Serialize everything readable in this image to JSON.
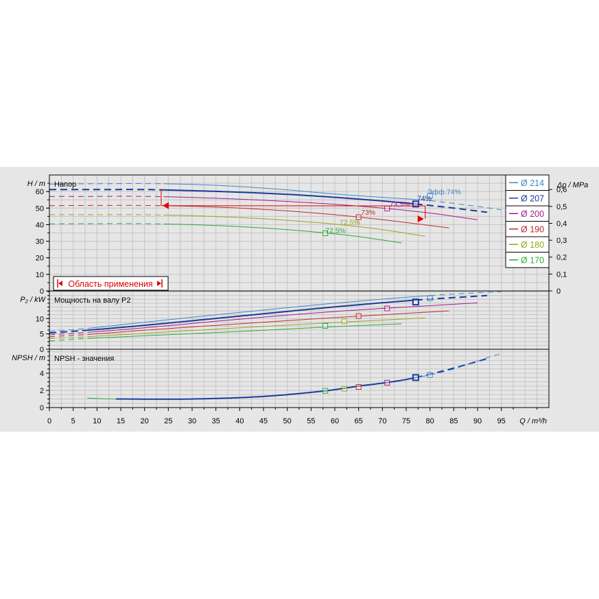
{
  "chart_data": {
    "type": "line",
    "x_axis": {
      "label": "Q / m³/h",
      "ticks": [
        0,
        5,
        10,
        15,
        20,
        25,
        30,
        35,
        40,
        45,
        50,
        55,
        60,
        65,
        70,
        75,
        80,
        85,
        90,
        95
      ],
      "range": [
        0,
        105
      ]
    },
    "legend": [
      {
        "label": "Ø 214",
        "color": "#3a87c6"
      },
      {
        "label": "Ø 207",
        "color": "#1a3a9a"
      },
      {
        "label": "Ø 200",
        "color": "#a3178e"
      },
      {
        "label": "Ø 190",
        "color": "#c0282c"
      },
      {
        "label": "Ø 180",
        "color": "#98a51d"
      },
      {
        "label": "Ø 170",
        "color": "#2aa83c"
      }
    ],
    "panels": {
      "head": {
        "title": "Напор",
        "ylabel": "H / m",
        "yticks": [
          0,
          10,
          20,
          30,
          40,
          50,
          60
        ],
        "yrange": [
          0,
          70
        ],
        "right_label": "Δp / MPa",
        "right_ticks": [
          "0",
          "0,1",
          "0,2",
          "0,3",
          "0,4",
          "0,5",
          "0,6"
        ],
        "range_label": "Область применения",
        "efficiency_title": "Эфф.",
        "efficiency_labels": [
          {
            "text": "74%",
            "x": 83.5,
            "y": 58.5,
            "color": "#3a87c6"
          },
          {
            "text": "74%",
            "x": 77.3,
            "y": 54.5,
            "color": "#1a3a9a"
          },
          {
            "text": "73,5%",
            "x": 71.5,
            "y": 51.0,
            "color": "#a3178e"
          },
          {
            "text": "73%",
            "x": 65.5,
            "y": 46.0,
            "color": "#c0282c"
          },
          {
            "text": "72,5%",
            "x": 61.0,
            "y": 40.0,
            "color": "#98a51d"
          },
          {
            "text": "72,5%",
            "x": 58.0,
            "y": 35.0,
            "color": "#2aa83c"
          }
        ],
        "series": [
          {
            "name": "Ø 214",
            "color": "#3a87c6",
            "width": 1,
            "dashed_end": 24,
            "solid_end": 80,
            "points": [
              [
                0,
                64.5
              ],
              [
                10,
                64.7
              ],
              [
                20,
                64.8
              ],
              [
                30,
                64.3
              ],
              [
                40,
                63
              ],
              [
                50,
                61
              ],
              [
                60,
                58.5
              ],
              [
                70,
                56.5
              ],
              [
                80,
                54.5
              ],
              [
                90,
                51
              ],
              [
                95,
                49
              ]
            ]
          },
          {
            "name": "Ø 207",
            "color": "#1a3a9a",
            "width": 2,
            "dashed_end": 24,
            "solid_end": 77,
            "points": [
              [
                0,
                61.2
              ],
              [
                10,
                61.2
              ],
              [
                20,
                61.2
              ],
              [
                30,
                60.5
              ],
              [
                40,
                59.6
              ],
              [
                50,
                58.3
              ],
              [
                60,
                56.5
              ],
              [
                70,
                54.3
              ],
              [
                77,
                52.5
              ],
              [
                85,
                50
              ],
              [
                92,
                47.5
              ]
            ]
          },
          {
            "name": "Ø 200",
            "color": "#a3178e",
            "width": 1,
            "dashed_end": 24,
            "solid_end": 90,
            "points": [
              [
                0,
                57
              ],
              [
                10,
                57.1
              ],
              [
                20,
                57.1
              ],
              [
                30,
                56.4
              ],
              [
                40,
                55.4
              ],
              [
                50,
                54
              ],
              [
                60,
                52.3
              ],
              [
                70,
                50
              ],
              [
                80,
                47
              ],
              [
                90,
                43
              ]
            ]
          },
          {
            "name": "Ø 190",
            "color": "#c0282c",
            "width": 1,
            "dashed_end": 24,
            "solid_end": 84,
            "points": [
              [
                0,
                51.5
              ],
              [
                10,
                51.6
              ],
              [
                20,
                51.6
              ],
              [
                30,
                51.1
              ],
              [
                40,
                50
              ],
              [
                50,
                48.3
              ],
              [
                60,
                46
              ],
              [
                70,
                43
              ],
              [
                80,
                39.5
              ],
              [
                84,
                38
              ]
            ]
          },
          {
            "name": "Ø 180",
            "color": "#98a51d",
            "width": 1,
            "dashed_end": 24,
            "solid_end": 79,
            "points": [
              [
                0,
                46
              ],
              [
                10,
                46
              ],
              [
                20,
                46
              ],
              [
                30,
                45.4
              ],
              [
                40,
                44.3
              ],
              [
                50,
                42.6
              ],
              [
                60,
                40.3
              ],
              [
                70,
                37
              ],
              [
                79,
                33
              ]
            ]
          },
          {
            "name": "Ø 170",
            "color": "#2aa83c",
            "width": 1,
            "dashed_end": 24,
            "solid_end": 74,
            "points": [
              [
                0,
                40.5
              ],
              [
                10,
                40.6
              ],
              [
                20,
                40.6
              ],
              [
                30,
                40
              ],
              [
                40,
                38.8
              ],
              [
                50,
                37
              ],
              [
                58,
                35
              ],
              [
                65,
                32.8
              ],
              [
                74,
                29
              ]
            ]
          }
        ],
        "duty_points": [
          {
            "x": 80,
            "y": 57.5,
            "color": "#3a87c6"
          },
          {
            "x": 77,
            "y": 52.5,
            "color": "#1a3a9a"
          },
          {
            "x": 71,
            "y": 49.8,
            "color": "#a3178e"
          },
          {
            "x": 65,
            "y": 44.5,
            "color": "#c0282c"
          },
          {
            "x": 58,
            "y": 34.8,
            "color": "#2aa83c"
          }
        ],
        "operating_bracket": {
          "x_left": 23.5,
          "x_right": 79,
          "y_top": 61.5,
          "y_bottom": 51.5,
          "y_bottom_right": 51.3,
          "y_right_bottom": 43.5,
          "color": "#e00000"
        }
      },
      "power": {
        "title": "Мощность на валу P2",
        "ylabel": "P₂ / kW",
        "yticks": [
          0,
          5,
          10
        ],
        "yrange": [
          0,
          19
        ],
        "series": [
          {
            "name": "Ø 214",
            "color": "#3a87c6",
            "width": 1,
            "dashed_end": 8,
            "solid_end": 80,
            "points": [
              [
                0,
                5.8
              ],
              [
                8,
                6.8
              ],
              [
                20,
                8.8
              ],
              [
                40,
                12
              ],
              [
                60,
                15
              ],
              [
                80,
                17.5
              ],
              [
                95,
                18.8
              ]
            ]
          },
          {
            "name": "Ø 207",
            "color": "#1a3a9a",
            "width": 2,
            "dashed_end": 8,
            "solid_end": 77,
            "points": [
              [
                0,
                5.3
              ],
              [
                8,
                6.2
              ],
              [
                20,
                7.8
              ],
              [
                40,
                10.8
              ],
              [
                60,
                13.8
              ],
              [
                77,
                16
              ],
              [
                92,
                17.5
              ]
            ]
          },
          {
            "name": "Ø 200",
            "color": "#a3178e",
            "width": 1,
            "dashed_end": 8,
            "solid_end": 90,
            "points": [
              [
                0,
                4.7
              ],
              [
                8,
                5.5
              ],
              [
                20,
                7
              ],
              [
                40,
                9.8
              ],
              [
                60,
                12.3
              ],
              [
                80,
                14.2
              ],
              [
                90,
                15.1
              ]
            ]
          },
          {
            "name": "Ø 190",
            "color": "#c0282c",
            "width": 1,
            "dashed_end": 8,
            "solid_end": 84,
            "points": [
              [
                0,
                4.1
              ],
              [
                8,
                4.8
              ],
              [
                20,
                6.2
              ],
              [
                40,
                8.3
              ],
              [
                60,
                10.3
              ],
              [
                84,
                12.5
              ]
            ]
          },
          {
            "name": "Ø 180",
            "color": "#98a51d",
            "width": 1,
            "dashed_end": 8,
            "solid_end": 79,
            "points": [
              [
                0,
                3.5
              ],
              [
                8,
                4.1
              ],
              [
                20,
                5.2
              ],
              [
                40,
                7
              ],
              [
                60,
                8.7
              ],
              [
                79,
                10.2
              ]
            ]
          },
          {
            "name": "Ø 170",
            "color": "#2aa83c",
            "width": 1,
            "dashed_end": 8,
            "solid_end": 74,
            "points": [
              [
                0,
                2.7
              ],
              [
                8,
                3.5
              ],
              [
                20,
                4.4
              ],
              [
                40,
                5.8
              ],
              [
                58,
                7.2
              ],
              [
                74,
                8.3
              ]
            ]
          }
        ],
        "duty_points": [
          {
            "x": 80,
            "y": 16.6,
            "color": "#3a87c6"
          },
          {
            "x": 77,
            "y": 15.4,
            "color": "#1a3a9a"
          },
          {
            "x": 71,
            "y": 13.3,
            "color": "#a3178e"
          },
          {
            "x": 65,
            "y": 10.8,
            "color": "#c0282c"
          },
          {
            "x": 62,
            "y": 9.1,
            "color": "#98a51d"
          },
          {
            "x": 58,
            "y": 7.6,
            "color": "#2aa83c"
          }
        ]
      },
      "npsh": {
        "title": "NPSH - значения",
        "ylabel": "NPSH / m",
        "yticks": [
          0,
          2,
          4
        ],
        "yrange": [
          0,
          6.8
        ],
        "series": [
          {
            "name": "Ø 170",
            "color": "#2aa83c",
            "width": 1,
            "dashed_end": 8,
            "solid_end": 58,
            "points": [
              [
                8,
                1.1
              ],
              [
                14,
                1.0
              ],
              [
                30,
                1.0
              ],
              [
                45,
                1.3
              ],
              [
                58,
                1.9
              ]
            ]
          },
          {
            "name": "Ø 207",
            "color": "#1a3a9a",
            "width": 2,
            "dashed_end": 14,
            "solid_end": 77,
            "points": [
              [
                14,
                1.0
              ],
              [
                30,
                1.0
              ],
              [
                45,
                1.3
              ],
              [
                58,
                1.95
              ],
              [
                65,
                2.5
              ],
              [
                72,
                3.0
              ],
              [
                77,
                3.5
              ],
              [
                85,
                4.6
              ],
              [
                92,
                5.7
              ]
            ]
          },
          {
            "name": "Ø 214",
            "color": "#3a87c6",
            "width": 1,
            "dashed_end": 14,
            "solid_end": 80,
            "points": [
              [
                77,
                3.5
              ],
              [
                80,
                3.8
              ],
              [
                85,
                4.5
              ],
              [
                92,
                5.8
              ],
              [
                95,
                6.3
              ]
            ]
          }
        ],
        "duty_points": [
          {
            "x": 58,
            "y": 1.95,
            "color": "#2aa83c"
          },
          {
            "x": 62,
            "y": 2.2,
            "color": "#98a51d"
          },
          {
            "x": 65,
            "y": 2.4,
            "color": "#c0282c"
          },
          {
            "x": 71,
            "y": 2.9,
            "color": "#a3178e"
          },
          {
            "x": 77,
            "y": 3.5,
            "color": "#1a3a9a"
          },
          {
            "x": 80,
            "y": 3.8,
            "color": "#3a87c6"
          }
        ]
      }
    }
  }
}
